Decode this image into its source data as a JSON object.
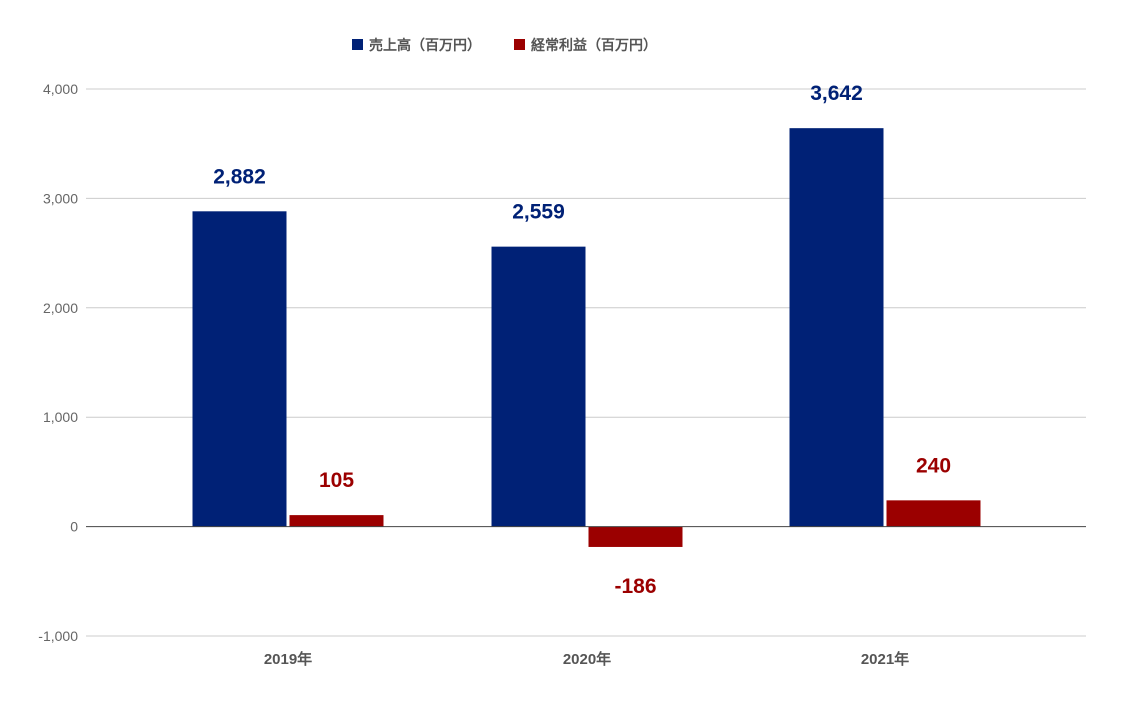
{
  "chart_data": {
    "type": "bar",
    "categories": [
      "2019年",
      "2020年",
      "2021年"
    ],
    "series": [
      {
        "name": "売上高（百万円）",
        "values": [
          2882,
          2559,
          3642
        ],
        "labels": [
          "2,882",
          "2,559",
          "3,642"
        ],
        "color": "#002176"
      },
      {
        "name": "経常利益（百万円）",
        "values": [
          105,
          -186,
          240
        ],
        "labels": [
          "105",
          "-186",
          "240"
        ],
        "color": "#9b0000"
      }
    ],
    "yticks": [
      -1000,
      0,
      1000,
      2000,
      3000,
      4000
    ],
    "ytick_labels": [
      "-1,000",
      "0",
      "1,000",
      "2,000",
      "3,000",
      "4,000"
    ],
    "ylim": [
      -1000,
      4000
    ],
    "grid": true,
    "legend": "top-center"
  }
}
